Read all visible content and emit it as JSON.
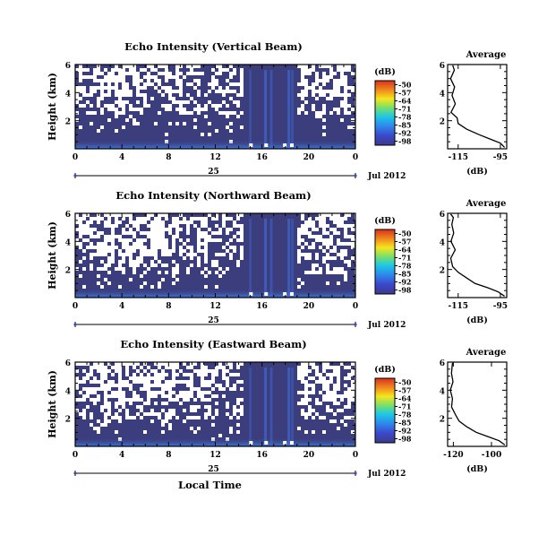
{
  "chart_data": [
    {
      "type": "heatmap",
      "title": "Echo Intensity (Vertical Beam)",
      "ylabel": "Height (km)",
      "xlim": [
        0,
        24
      ],
      "ylim": [
        0,
        6
      ],
      "xticks": [
        "0",
        "4",
        "8",
        "12",
        "16",
        "20",
        "0"
      ],
      "yticks": [
        "2",
        "4",
        "6"
      ],
      "date_day": "25",
      "date_month": "Jul 2012",
      "colorbar": {
        "unit": "(dB)",
        "ticks": [
          "-50",
          "-57",
          "-64",
          "-71",
          "-78",
          "-85",
          "-92",
          "-98"
        ]
      },
      "white_above_km": 2.6,
      "average": {
        "title": "Average",
        "xlabel": "(dB)",
        "xlim": [
          -120,
          -92
        ],
        "xticks": [
          "-115",
          "-95"
        ],
        "profile": [
          [
            -93,
            0.1
          ],
          [
            -95,
            0.4
          ],
          [
            -100,
            0.7
          ],
          [
            -105,
            1.0
          ],
          [
            -111,
            1.4
          ],
          [
            -115,
            1.8
          ],
          [
            -116,
            2.2
          ],
          [
            -118,
            2.6
          ],
          [
            -117,
            3.2
          ],
          [
            -118,
            3.8
          ],
          [
            -117,
            4.4
          ],
          [
            -118,
            5.0
          ],
          [
            -117,
            5.6
          ],
          [
            -118,
            5.95
          ]
        ]
      }
    },
    {
      "type": "heatmap",
      "title": "Echo Intensity (Northward Beam)",
      "ylabel": "Height (km)",
      "xlim": [
        0,
        24
      ],
      "ylim": [
        0,
        6
      ],
      "xticks": [
        "0",
        "4",
        "8",
        "12",
        "16",
        "20",
        "0"
      ],
      "yticks": [
        "2",
        "4",
        "6"
      ],
      "date_day": "25",
      "date_month": "Jul 2012",
      "colorbar": {
        "unit": "(dB)",
        "ticks": [
          "-50",
          "-57",
          "-64",
          "-71",
          "-78",
          "-85",
          "-92",
          "-98"
        ]
      },
      "white_above_km": 1.8,
      "average": {
        "title": "Average",
        "xlabel": "(dB)",
        "xlim": [
          -120,
          -92
        ],
        "xticks": [
          "-115",
          "-95"
        ],
        "profile": [
          [
            -93,
            0.1
          ],
          [
            -96,
            0.4
          ],
          [
            -101,
            0.7
          ],
          [
            -107,
            1.0
          ],
          [
            -111,
            1.4
          ],
          [
            -115,
            1.8
          ],
          [
            -117,
            2.2
          ],
          [
            -118,
            2.8
          ],
          [
            -117,
            3.4
          ],
          [
            -118,
            4.0
          ],
          [
            -117,
            4.6
          ],
          [
            -118,
            5.2
          ],
          [
            -117,
            5.7
          ],
          [
            -118,
            5.95
          ]
        ]
      }
    },
    {
      "type": "heatmap",
      "title": "Echo Intensity (Eastward Beam)",
      "ylabel": "Height (km)",
      "xlim": [
        0,
        24
      ],
      "ylim": [
        0,
        6
      ],
      "xticks": [
        "0",
        "4",
        "8",
        "12",
        "16",
        "20",
        "0"
      ],
      "yticks": [
        "2",
        "4",
        "6"
      ],
      "date_day": "25",
      "date_month": "Jul 2012",
      "xlabel": "Local Time",
      "colorbar": {
        "unit": "(dB)",
        "ticks": [
          "-50",
          "-57",
          "-64",
          "-71",
          "-78",
          "-85",
          "-92",
          "-98"
        ]
      },
      "white_above_km": 2.0,
      "average": {
        "title": "Average",
        "xlabel": "(dB)",
        "xlim": [
          -123,
          -92
        ],
        "xticks": [
          "-120",
          "-100"
        ],
        "profile": [
          [
            -93,
            0.1
          ],
          [
            -96,
            0.4
          ],
          [
            -102,
            0.7
          ],
          [
            -108,
            1.0
          ],
          [
            -113,
            1.4
          ],
          [
            -117,
            1.8
          ],
          [
            -119,
            2.2
          ],
          [
            -121,
            2.8
          ],
          [
            -120,
            3.4
          ],
          [
            -121,
            4.0
          ],
          [
            -120,
            4.6
          ],
          [
            -121,
            5.2
          ],
          [
            -120,
            5.7
          ],
          [
            -121,
            5.95
          ]
        ]
      }
    }
  ],
  "colorbar_colors": [
    "#e83020",
    "#f08a1e",
    "#f5e41c",
    "#6ee06a",
    "#18c8e8",
    "#2f8ef0",
    "#3a4fd6",
    "#3c3a8e"
  ],
  "background_color": "#3b3d7c"
}
